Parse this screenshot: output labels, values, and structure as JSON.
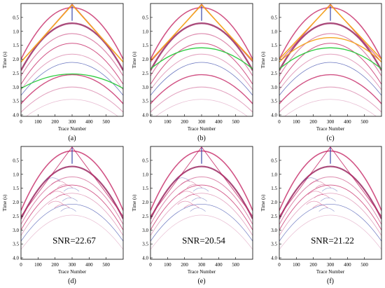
{
  "figure": {
    "y_axis_label": "Time (s)",
    "x_axis_label": "Trace Number",
    "y_ticks": [
      "0.5",
      "1.0",
      "1.5",
      "2.0",
      "2.5",
      "3.0",
      "3.5",
      "4.0"
    ],
    "x_ticks": [
      "0",
      "100",
      "200",
      "300",
      "400",
      "500"
    ],
    "colors": {
      "orange_line": "#f5a623",
      "green_curve": "#2ecc40",
      "event": "#c2185b",
      "event_blue": "#3949ab"
    },
    "panels": [
      {
        "id": "a",
        "caption": "(a)",
        "snr_text": "",
        "apex_time": 0.05,
        "left_time": 2.1,
        "green_apex": 2.5,
        "green_edge": 3.05,
        "orange_inner": false
      },
      {
        "id": "b",
        "caption": "(b)",
        "snr_text": "",
        "apex_time": 0.05,
        "left_time": 2.05,
        "green_apex": 1.55,
        "green_edge": 2.35,
        "orange_inner": false
      },
      {
        "id": "c",
        "caption": "(c)",
        "snr_text": "",
        "apex_time": 0.05,
        "left_time": 2.0,
        "green_apex": 1.55,
        "green_edge": 2.35,
        "orange_inner": true
      },
      {
        "id": "d",
        "caption": "(d)",
        "snr_text": "SNR=22.67"
      },
      {
        "id": "e",
        "caption": "(e)",
        "snr_text": "SNR=20.54"
      },
      {
        "id": "f",
        "caption": "(f)",
        "snr_text": "SNR=21.22"
      }
    ]
  }
}
